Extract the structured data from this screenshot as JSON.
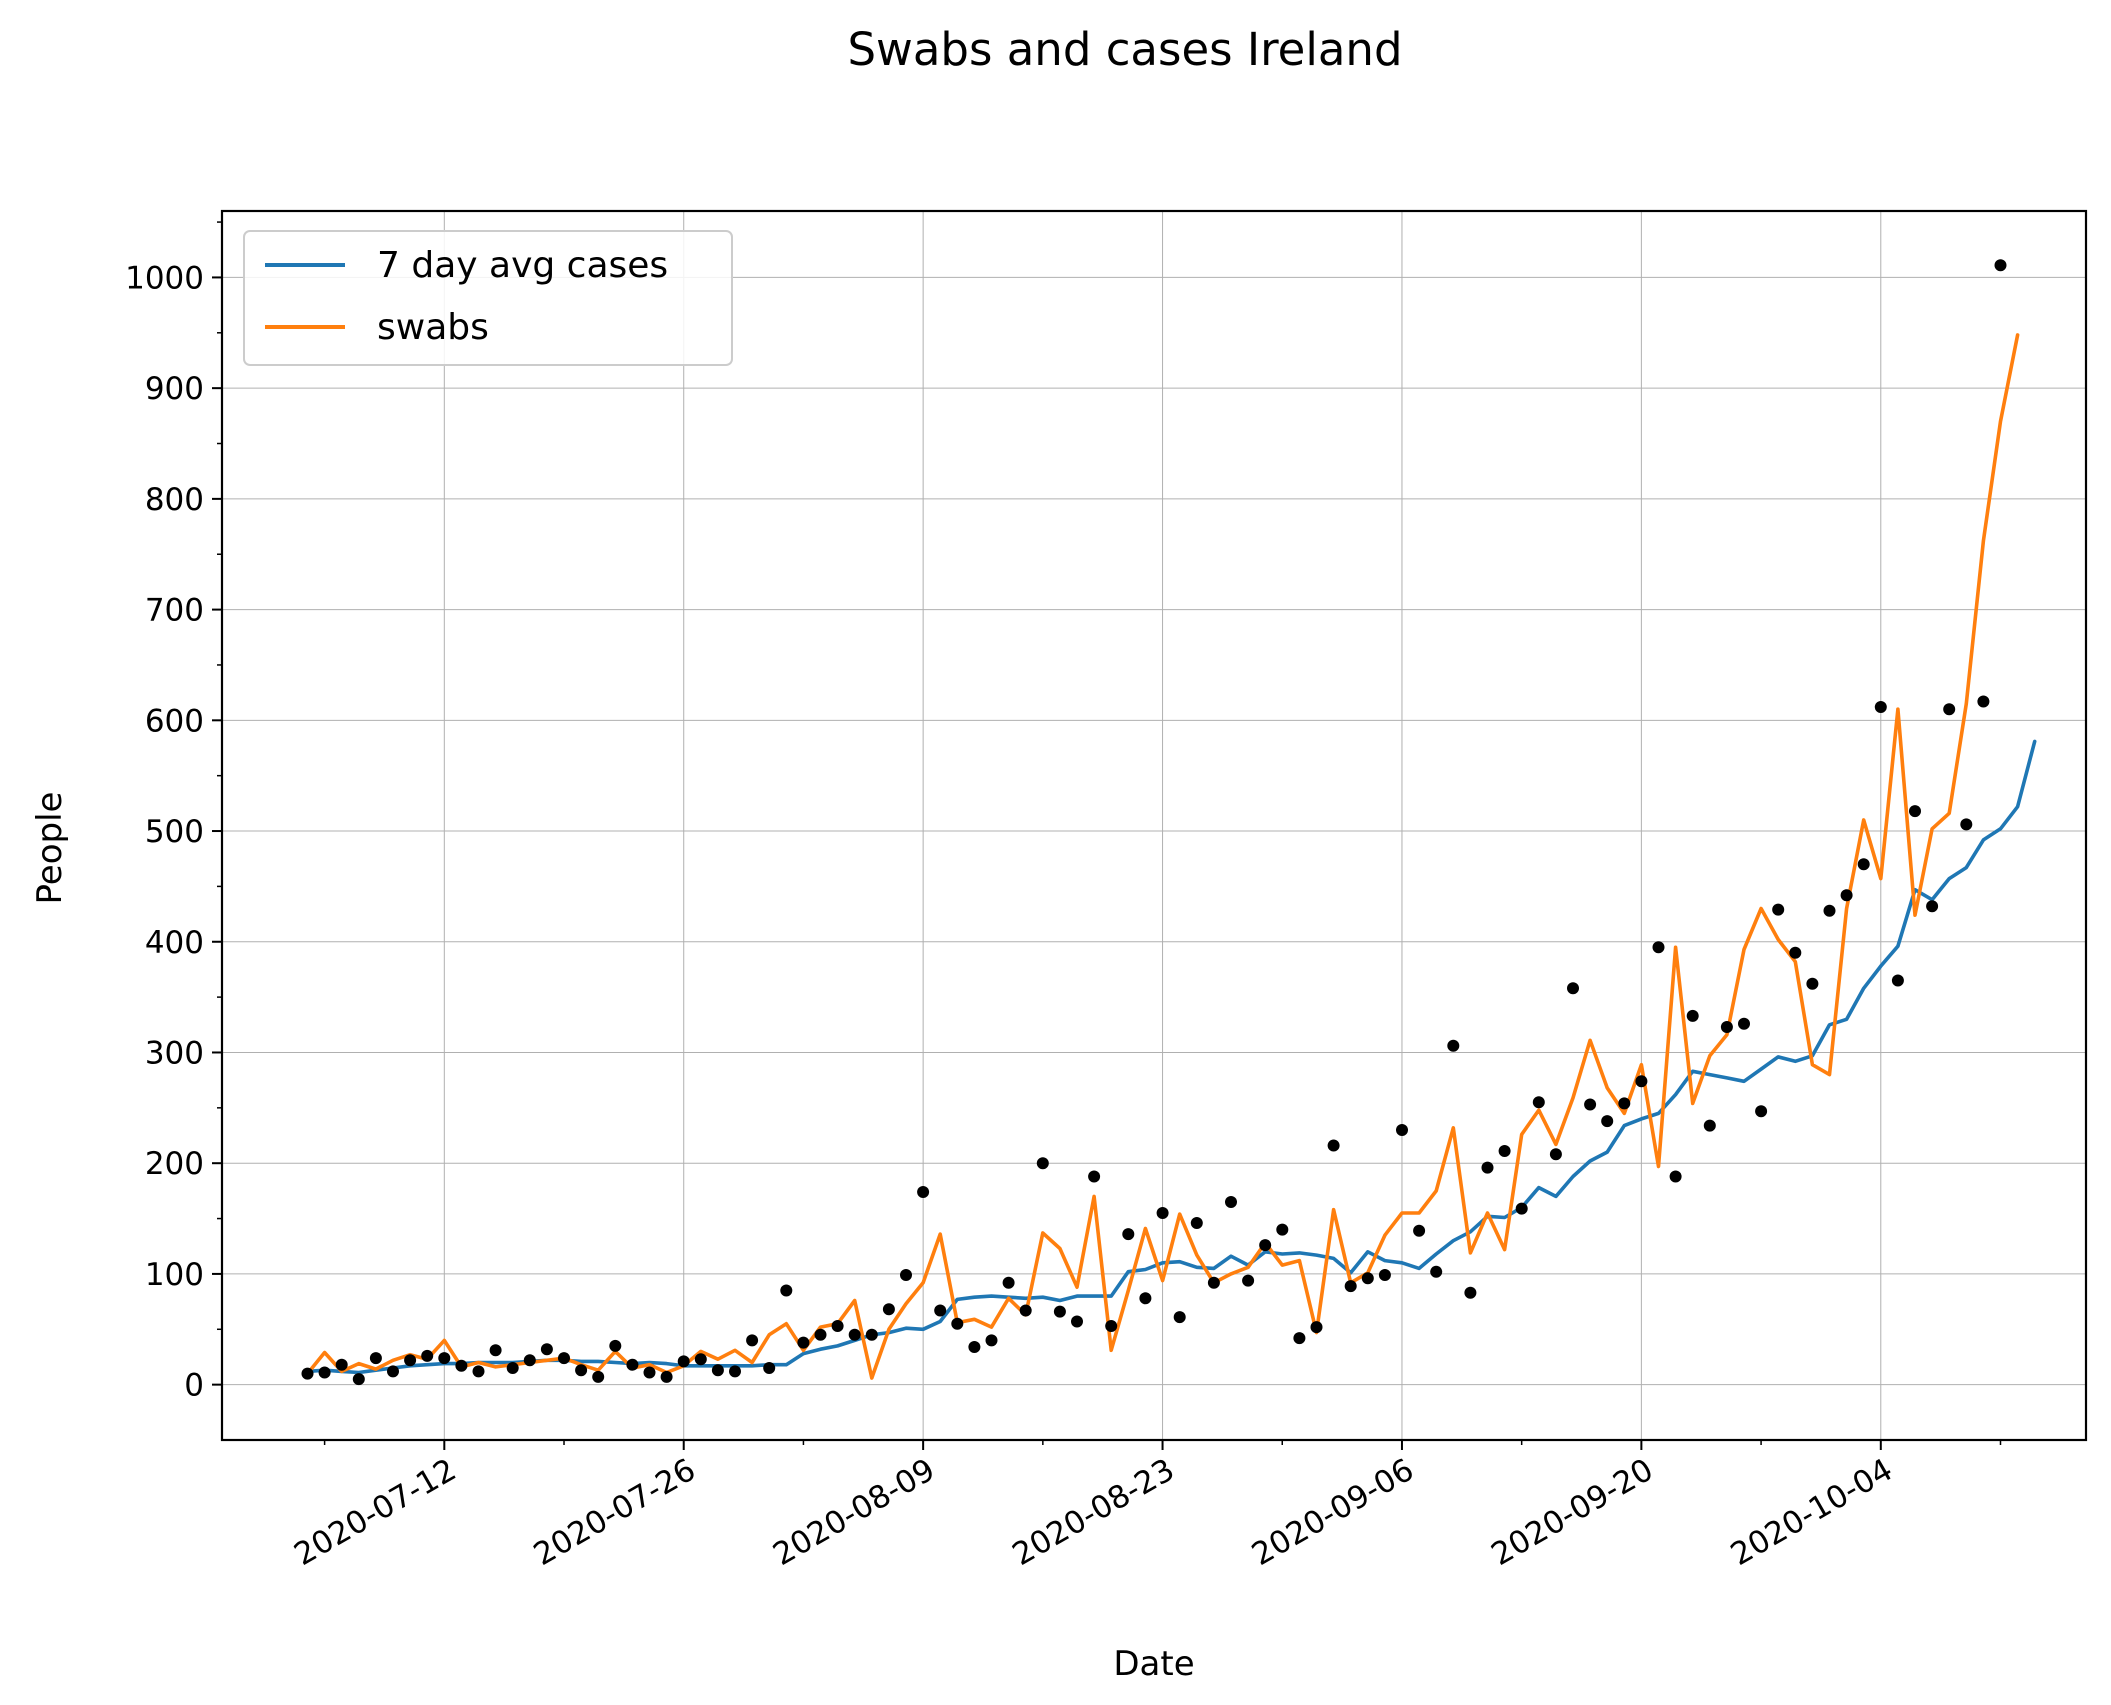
{
  "chart_data": {
    "type": "line",
    "title": "Swabs and cases Ireland",
    "xlabel": "Date",
    "ylabel": "People",
    "start_date": "2020-07-04",
    "x_ticks": [
      "2020-07-12",
      "2020-07-26",
      "2020-08-09",
      "2020-08-23",
      "2020-09-06",
      "2020-09-20",
      "2020-10-04"
    ],
    "y_ticks": [
      0,
      100,
      200,
      300,
      400,
      500,
      600,
      700,
      800,
      900,
      1000
    ],
    "xlim": [
      "2020-06-29",
      "2020-10-16"
    ],
    "ylim": [
      -50,
      1060
    ],
    "grid": true,
    "legend_position": "top-left",
    "colors": {
      "avg": "#1f77b4",
      "swabs": "#ff7f0e",
      "cases": "#000000"
    },
    "series": [
      {
        "name": "7 day avg cases",
        "values": [
          12,
          13,
          12,
          11,
          13,
          15,
          17,
          18,
          19,
          19,
          20,
          20,
          20,
          21,
          22,
          22,
          21,
          21,
          20,
          19,
          20,
          19,
          17,
          17,
          17,
          17,
          17,
          18,
          18,
          28,
          32,
          35,
          40,
          45,
          47,
          51,
          50,
          57,
          77,
          79,
          80,
          79,
          78,
          79,
          76,
          80,
          80,
          80,
          102,
          104,
          110,
          111,
          106,
          105,
          116,
          108,
          120,
          118,
          119,
          117,
          114,
          101,
          120,
          112,
          110,
          105,
          118,
          130,
          138,
          152,
          151,
          160,
          178,
          170,
          188,
          202,
          210,
          234,
          240,
          245,
          262,
          283,
          280,
          277,
          274,
          285,
          296,
          292,
          297,
          325,
          330,
          358,
          378,
          396,
          447,
          438,
          457,
          467,
          492,
          502,
          522,
          581
        ]
      },
      {
        "name": "swabs",
        "values": [
          10,
          29,
          12,
          19,
          14,
          22,
          27,
          23,
          40,
          16,
          20,
          16,
          18,
          20,
          22,
          24,
          18,
          13,
          30,
          15,
          18,
          11,
          17,
          30,
          23,
          31,
          20,
          45,
          55,
          31,
          52,
          55,
          76,
          6,
          50,
          73,
          92,
          136,
          56,
          59,
          52,
          78,
          63,
          137,
          123,
          88,
          170,
          31,
          85,
          141,
          94,
          154,
          117,
          92,
          100,
          106,
          128,
          108,
          112,
          47,
          158,
          92,
          101,
          135,
          155,
          155,
          175,
          232,
          119,
          155,
          122,
          226,
          248,
          217,
          259,
          311,
          268,
          245,
          289,
          197,
          395,
          254,
          297,
          316,
          393,
          430,
          402,
          382,
          289,
          280,
          430,
          510,
          457,
          610,
          424,
          502,
          516,
          615,
          762,
          870,
          948
        ]
      }
    ],
    "scatter": {
      "name": "cases",
      "values": [
        10,
        11,
        18,
        5,
        24,
        12,
        22,
        26,
        24,
        17,
        12,
        31,
        15,
        22,
        32,
        24,
        13,
        7,
        35,
        18,
        11,
        7,
        21,
        23,
        13,
        12,
        40,
        15,
        85,
        38,
        45,
        53,
        45,
        45,
        68,
        99,
        174,
        67,
        55,
        34,
        40,
        92,
        67,
        200,
        66,
        57,
        188,
        53,
        136,
        78,
        155,
        61,
        146,
        92,
        165,
        94,
        126,
        140,
        42,
        52,
        216,
        89,
        96,
        99,
        230,
        139,
        102,
        306,
        83,
        196,
        211,
        159,
        255,
        208,
        358,
        253,
        238,
        254,
        274,
        395,
        188,
        333,
        234,
        323,
        326,
        247,
        429,
        390,
        362,
        428,
        442,
        470,
        612,
        365,
        518,
        432,
        610,
        506,
        617,
        1011
      ]
    }
  }
}
